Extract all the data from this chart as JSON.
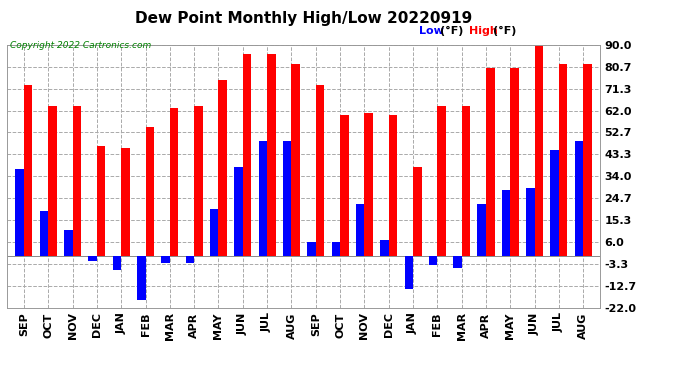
{
  "title": "Dew Point Monthly High/Low 20220919",
  "copyright": "Copyright 2022 Cartronics.com",
  "legend_low": "Low",
  "legend_high": "High",
  "legend_unit": "°F)",
  "categories": [
    "SEP",
    "OCT",
    "NOV",
    "DEC",
    "JAN",
    "FEB",
    "MAR",
    "APR",
    "MAY",
    "JUN",
    "JUL",
    "AUG",
    "SEP",
    "OCT",
    "NOV",
    "DEC",
    "JAN",
    "FEB",
    "MAR",
    "APR",
    "MAY",
    "JUN",
    "JUL",
    "AUG"
  ],
  "high_values": [
    73,
    64,
    64,
    47,
    46,
    55,
    63,
    64,
    75,
    86,
    86,
    82,
    73,
    60,
    61,
    60,
    38,
    64,
    64,
    80,
    80,
    90,
    82,
    82
  ],
  "low_values": [
    37,
    19,
    11,
    -2,
    -6,
    -19,
    -3,
    -3,
    20,
    38,
    49,
    49,
    6,
    6,
    22,
    7,
    -14,
    -4,
    -5,
    22,
    28,
    29,
    45,
    49
  ],
  "ylim": [
    -22.0,
    90.0
  ],
  "yticks": [
    -22.0,
    -12.7,
    -3.3,
    6.0,
    15.3,
    24.7,
    34.0,
    43.3,
    52.7,
    62.0,
    71.3,
    80.7,
    90.0
  ],
  "color_high": "#ff0000",
  "color_low": "#0000ff",
  "color_bg": "#ffffff",
  "color_grid": "#aaaaaa",
  "title_fontsize": 11,
  "tick_fontsize": 8,
  "bar_width": 0.35
}
